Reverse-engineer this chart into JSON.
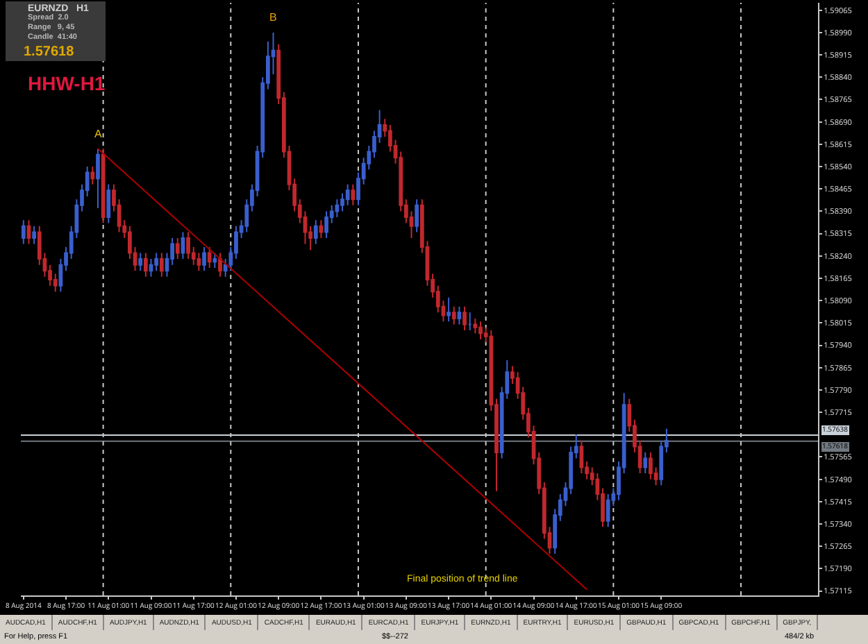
{
  "chart_data": {
    "type": "candlestick",
    "categories": [
      "8 Aug 2014",
      null,
      null,
      null,
      null,
      null,
      null,
      null,
      "8 Aug 17:00",
      null,
      null,
      null,
      null,
      null,
      null,
      null,
      "11 Aug 01:00",
      null,
      null,
      null,
      null,
      null,
      null,
      null,
      "11 Aug 09:00",
      null,
      null,
      null,
      null,
      null,
      null,
      null,
      "11 Aug 17:00",
      null,
      null,
      null,
      null,
      null,
      null,
      null,
      "12 Aug 01:00",
      null,
      null,
      null,
      null,
      null,
      null,
      null,
      "12 Aug 09:00",
      null,
      null,
      null,
      null,
      null,
      null,
      null,
      "12 Aug 17:00",
      null,
      null,
      null,
      null,
      null,
      null,
      null,
      "13 Aug 01:00",
      null,
      null,
      null,
      null,
      null,
      null,
      null,
      "13 Aug 09:00",
      null,
      null,
      null,
      null,
      null,
      null,
      null,
      "13 Aug 17:00",
      null,
      null,
      null,
      null,
      null,
      null,
      null,
      "14 Aug 01:00",
      null,
      null,
      null,
      null,
      null,
      null,
      null,
      "14 Aug 09:00",
      null,
      null,
      null,
      null,
      null,
      null,
      null,
      "14 Aug 17:00",
      null,
      null,
      null,
      null,
      null,
      null,
      null,
      "15 Aug 01:00",
      null,
      null,
      null,
      null,
      null,
      null,
      null,
      "15 Aug 09:00",
      null,
      null,
      null,
      null,
      null,
      null,
      null,
      null,
      null,
      null,
      null,
      null,
      null,
      null,
      null,
      null,
      null,
      null,
      null,
      null,
      null,
      null,
      null,
      null,
      null,
      null,
      null,
      null,
      null
    ],
    "ohlc": [
      [
        1.583,
        1.5836,
        1.5828,
        1.5834
      ],
      [
        1.5834,
        1.5836,
        1.5828,
        1.583
      ],
      [
        1.583,
        1.5834,
        1.5828,
        1.5832
      ],
      [
        1.5832,
        1.5834,
        1.5821,
        1.5823
      ],
      [
        1.5823,
        1.5825,
        1.5817,
        1.5819
      ],
      [
        1.5819,
        1.5821,
        1.5814,
        1.5816
      ],
      [
        1.5816,
        1.5818,
        1.5812,
        1.5814
      ],
      [
        1.5814,
        1.5823,
        1.5812,
        1.5821
      ],
      [
        1.5821,
        1.5827,
        1.5819,
        1.5825
      ],
      [
        1.5825,
        1.5834,
        1.5823,
        1.5832
      ],
      [
        1.5832,
        1.5843,
        1.583,
        1.5841
      ],
      [
        1.5841,
        1.5848,
        1.5839,
        1.5846
      ],
      [
        1.5846,
        1.5854,
        1.5844,
        1.5852
      ],
      [
        1.5852,
        1.5854,
        1.5848,
        1.585
      ],
      [
        1.585,
        1.586,
        1.584,
        1.5858
      ],
      [
        1.5858,
        1.586,
        1.5835,
        1.5837
      ],
      [
        1.5837,
        1.5848,
        1.5835,
        1.5846
      ],
      [
        1.5846,
        1.5848,
        1.5839,
        1.5841
      ],
      [
        1.5841,
        1.5843,
        1.5832,
        1.5834
      ],
      [
        1.5834,
        1.5836,
        1.583,
        1.5832
      ],
      [
        1.5832,
        1.5834,
        1.5823,
        1.5825
      ],
      [
        1.5825,
        1.5827,
        1.5819,
        1.5821
      ],
      [
        1.5821,
        1.5825,
        1.5819,
        1.5823
      ],
      [
        1.5823,
        1.5825,
        1.5817,
        1.5819
      ],
      [
        1.5819,
        1.5823,
        1.5817,
        1.5821
      ],
      [
        1.5821,
        1.5825,
        1.5819,
        1.5823
      ],
      [
        1.5823,
        1.5825,
        1.5817,
        1.5819
      ],
      [
        1.5819,
        1.5825,
        1.5817,
        1.5823
      ],
      [
        1.5823,
        1.583,
        1.5821,
        1.5828
      ],
      [
        1.5828,
        1.583,
        1.5823,
        1.5825
      ],
      [
        1.5825,
        1.5832,
        1.5823,
        1.583
      ],
      [
        1.583,
        1.5832,
        1.5823,
        1.5825
      ],
      [
        1.5825,
        1.5827,
        1.5821,
        1.5823
      ],
      [
        1.5823,
        1.5825,
        1.5819,
        1.5821
      ],
      [
        1.5821,
        1.5827,
        1.5819,
        1.5825
      ],
      [
        1.5825,
        1.5827,
        1.582,
        1.5822
      ],
      [
        1.5822,
        1.5825,
        1.582,
        1.5823
      ],
      [
        1.5823,
        1.5825,
        1.5817,
        1.5819
      ],
      [
        1.5819,
        1.5823,
        1.5817,
        1.5821
      ],
      [
        1.5821,
        1.5827,
        1.5819,
        1.5825
      ],
      [
        1.5825,
        1.5834,
        1.5823,
        1.5832
      ],
      [
        1.5832,
        1.5836,
        1.583,
        1.5834
      ],
      [
        1.5834,
        1.5843,
        1.5832,
        1.5841
      ],
      [
        1.5841,
        1.5848,
        1.5839,
        1.5846
      ],
      [
        1.5846,
        1.5861,
        1.5844,
        1.5859
      ],
      [
        1.5859,
        1.5884,
        1.5857,
        1.5882
      ],
      [
        1.5882,
        1.5896,
        1.588,
        1.5891
      ],
      [
        1.5891,
        1.5899,
        1.5885,
        1.5893
      ],
      [
        1.5893,
        1.5895,
        1.5875,
        1.5877
      ],
      [
        1.5877,
        1.5879,
        1.5857,
        1.5859
      ],
      [
        1.5859,
        1.5861,
        1.5846,
        1.5848
      ],
      [
        1.5848,
        1.585,
        1.5839,
        1.5841
      ],
      [
        1.5841,
        1.5843,
        1.5835,
        1.5837
      ],
      [
        1.5837,
        1.5839,
        1.5828,
        1.5832
      ],
      [
        1.5832,
        1.5834,
        1.5826,
        1.583
      ],
      [
        1.583,
        1.5836,
        1.5828,
        1.5834
      ],
      [
        1.5834,
        1.5836,
        1.583,
        1.5832
      ],
      [
        1.5832,
        1.5839,
        1.583,
        1.5837
      ],
      [
        1.5837,
        1.5841,
        1.5835,
        1.5839
      ],
      [
        1.5839,
        1.5843,
        1.5837,
        1.5841
      ],
      [
        1.5841,
        1.5845,
        1.5839,
        1.5843
      ],
      [
        1.5843,
        1.5848,
        1.5841,
        1.5846
      ],
      [
        1.5846,
        1.5848,
        1.5841,
        1.5843
      ],
      [
        1.5843,
        1.5852,
        1.5841,
        1.585
      ],
      [
        1.585,
        1.5857,
        1.5848,
        1.5855
      ],
      [
        1.5855,
        1.5861,
        1.5853,
        1.5859
      ],
      [
        1.5859,
        1.5866,
        1.5857,
        1.5864
      ],
      [
        1.5864,
        1.5873,
        1.5862,
        1.5868
      ],
      [
        1.5868,
        1.587,
        1.5864,
        1.5866
      ],
      [
        1.5866,
        1.5868,
        1.5859,
        1.5861
      ],
      [
        1.5861,
        1.5863,
        1.5855,
        1.5857
      ],
      [
        1.5857,
        1.5859,
        1.5839,
        1.5841
      ],
      [
        1.5841,
        1.5843,
        1.5835,
        1.5837
      ],
      [
        1.5837,
        1.5839,
        1.583,
        1.5834
      ],
      [
        1.5834,
        1.5843,
        1.5832,
        1.5841
      ],
      [
        1.5841,
        1.5843,
        1.5825,
        1.5827
      ],
      [
        1.5827,
        1.5829,
        1.5814,
        1.5816
      ],
      [
        1.5816,
        1.5818,
        1.581,
        1.5812
      ],
      [
        1.5812,
        1.5814,
        1.5805,
        1.5807
      ],
      [
        1.5807,
        1.5809,
        1.5802,
        1.5804
      ],
      [
        1.5804,
        1.581,
        1.5802,
        1.5805
      ],
      [
        1.5805,
        1.5807,
        1.5801,
        1.5803
      ],
      [
        1.5803,
        1.5807,
        1.5801,
        1.5805
      ],
      [
        1.5805,
        1.5807,
        1.5799,
        1.5801
      ],
      [
        1.5801,
        1.5805,
        1.5799,
        1.5801
      ],
      [
        1.5801,
        1.5803,
        1.5798,
        1.58
      ],
      [
        1.58,
        1.5802,
        1.5796,
        1.5798
      ],
      [
        1.5798,
        1.58,
        1.5795,
        1.5797
      ],
      [
        1.5797,
        1.5799,
        1.5772,
        1.5774
      ],
      [
        1.5774,
        1.5776,
        1.5745,
        1.5758
      ],
      [
        1.5758,
        1.578,
        1.5756,
        1.5778
      ],
      [
        1.5778,
        1.5789,
        1.5776,
        1.5785
      ],
      [
        1.5785,
        1.5787,
        1.5781,
        1.5783
      ],
      [
        1.5783,
        1.5785,
        1.5776,
        1.5778
      ],
      [
        1.5778,
        1.578,
        1.5769,
        1.5771
      ],
      [
        1.5771,
        1.5773,
        1.5763,
        1.5765
      ],
      [
        1.5765,
        1.5767,
        1.5754,
        1.5756
      ],
      [
        1.5756,
        1.5758,
        1.5744,
        1.5746
      ],
      [
        1.5746,
        1.5748,
        1.5729,
        1.5731
      ],
      [
        1.5731,
        1.5733,
        1.5724,
        1.5726
      ],
      [
        1.5726,
        1.5739,
        1.5724,
        1.5737
      ],
      [
        1.5737,
        1.5744,
        1.5735,
        1.5742
      ],
      [
        1.5742,
        1.5748,
        1.574,
        1.5746
      ],
      [
        1.5746,
        1.576,
        1.5744,
        1.5758
      ],
      [
        1.5758,
        1.5764,
        1.5756,
        1.576
      ],
      [
        1.576,
        1.5762,
        1.5751,
        1.5753
      ],
      [
        1.5753,
        1.5755,
        1.5749,
        1.5751
      ],
      [
        1.5751,
        1.5753,
        1.5747,
        1.5749
      ],
      [
        1.5749,
        1.5751,
        1.5742,
        1.5744
      ],
      [
        1.5744,
        1.5746,
        1.5733,
        1.5735
      ],
      [
        1.5735,
        1.5744,
        1.5733,
        1.5742
      ],
      [
        1.5742,
        1.5746,
        1.574,
        1.5744
      ],
      [
        1.5744,
        1.5755,
        1.5742,
        1.5753
      ],
      [
        1.5753,
        1.5778,
        1.5751,
        1.5774
      ],
      [
        1.5774,
        1.5776,
        1.5765,
        1.5767
      ],
      [
        1.5767,
        1.5769,
        1.5758,
        1.576
      ],
      [
        1.576,
        1.5762,
        1.5751,
        1.5753
      ],
      [
        1.5753,
        1.5758,
        1.5751,
        1.5756
      ],
      [
        1.5756,
        1.5758,
        1.5749,
        1.5751
      ],
      [
        1.5751,
        1.5753,
        1.5747,
        1.5749
      ],
      [
        1.5749,
        1.5762,
        1.5747,
        1.576
      ],
      [
        1.576,
        1.5766,
        1.5758,
        1.5762
      ],
      null,
      null,
      null,
      null,
      null,
      null,
      null,
      null,
      null,
      null,
      null,
      null,
      null,
      null,
      null,
      null,
      null,
      null,
      null,
      null,
      null,
      null,
      null,
      null,
      null,
      null,
      null,
      null
    ],
    "colors": [
      "#3a5fcd",
      "#c0282d",
      "#3a5fcd",
      "#c0282d",
      "#c0282d",
      "#c0282d",
      "#c0282d",
      "#3a5fcd",
      "#3a5fcd",
      "#3a5fcd",
      "#3a5fcd",
      "#3a5fcd",
      "#3a5fcd",
      "#c0282d",
      "#3a5fcd",
      "#c0282d",
      "#3a5fcd",
      "#c0282d",
      "#c0282d",
      "#c0282d",
      "#c0282d",
      "#c0282d",
      "#3a5fcd",
      "#c0282d",
      "#3a5fcd",
      "#3a5fcd",
      "#c0282d",
      "#3a5fcd",
      "#3a5fcd",
      "#c0282d",
      "#3a5fcd",
      "#c0282d",
      "#c0282d",
      "#c0282d",
      "#3a5fcd",
      "#c0282d",
      "#3a5fcd",
      "#c0282d",
      "#3a5fcd",
      "#3a5fcd",
      "#3a5fcd",
      "#3a5fcd",
      "#3a5fcd",
      "#3a5fcd",
      "#3a5fcd",
      "#3a5fcd",
      "#3a5fcd",
      "#3a5fcd",
      "#c0282d",
      "#c0282d",
      "#c0282d",
      "#c0282d",
      "#c0282d",
      "#c0282d",
      "#c0282d",
      "#3a5fcd",
      "#c0282d",
      "#3a5fcd",
      "#3a5fcd",
      "#3a5fcd",
      "#3a5fcd",
      "#3a5fcd",
      "#c0282d",
      "#3a5fcd",
      "#3a5fcd",
      "#3a5fcd",
      "#3a5fcd",
      "#3a5fcd",
      "#c0282d",
      "#c0282d",
      "#c0282d",
      "#c0282d",
      "#c0282d",
      "#c0282d",
      "#3a5fcd",
      "#c0282d",
      "#c0282d",
      "#c0282d",
      "#c0282d",
      "#c0282d",
      "#3a5fcd",
      "#c0282d",
      "#3a5fcd",
      "#c0282d",
      "#3a5fcd",
      "#c0282d",
      "#c0282d",
      "#c0282d",
      "#c0282d",
      "#c0282d",
      "#3a5fcd",
      "#3a5fcd",
      "#c0282d",
      "#c0282d",
      "#c0282d",
      "#c0282d",
      "#c0282d",
      "#c0282d",
      "#c0282d",
      "#c0282d",
      "#3a5fcd",
      "#3a5fcd",
      "#3a5fcd",
      "#3a5fcd",
      "#3a5fcd",
      "#c0282d",
      "#c0282d",
      "#c0282d",
      "#c0282d",
      "#c0282d",
      "#3a5fcd",
      "#3a5fcd",
      "#3a5fcd",
      "#3a5fcd",
      "#c0282d",
      "#c0282d",
      "#c0282d",
      "#3a5fcd",
      "#c0282d",
      "#c0282d",
      "#3a5fcd",
      "#3a5fcd",
      null,
      null,
      null,
      null,
      null,
      null,
      null,
      null,
      null,
      null,
      null,
      null,
      null,
      null,
      null,
      null,
      null,
      null,
      null,
      null,
      null,
      null,
      null,
      null,
      null,
      null,
      null,
      null
    ],
    "series": [
      {
        "type": "line",
        "color": "#b00000",
        "values": [
          null,
          null,
          null,
          null,
          null,
          null,
          null,
          null,
          null,
          null,
          null,
          null,
          null,
          null,
          1.586,
          null,
          null,
          null,
          null,
          null,
          null,
          null,
          null,
          null,
          null,
          null,
          null,
          null,
          null,
          null,
          null,
          null,
          null,
          null,
          null,
          null,
          null,
          null,
          null,
          null,
          null,
          null,
          null,
          null,
          null,
          null,
          null,
          null,
          null,
          null,
          null,
          null,
          null,
          null,
          null,
          null,
          null,
          null,
          null,
          null,
          null,
          null,
          null,
          null,
          null,
          null,
          null,
          null,
          null,
          null,
          null,
          null,
          null,
          null,
          null,
          null,
          null,
          null,
          null,
          null,
          null,
          null,
          null,
          null,
          null,
          null,
          null,
          null,
          null,
          null,
          null,
          null,
          null,
          null,
          null,
          null,
          null,
          null,
          null,
          null,
          null,
          null,
          null,
          null,
          null,
          null,
          1.5712,
          null,
          null,
          null,
          null,
          null,
          null,
          null,
          null,
          null,
          null,
          null,
          null,
          null,
          null,
          null,
          null,
          null,
          null,
          null,
          null,
          null,
          null,
          null,
          null,
          null,
          null,
          null,
          null,
          null,
          null,
          null,
          null,
          null,
          null,
          null,
          null,
          null,
          null,
          null,
          null,
          null,
          null,
          null
        ]
      }
    ],
    "ylim": [
      1.571,
      1.5909
    ],
    "yticks": [
      1.57115,
      {
        "value": 1.5719,
        "label": "1.57190"
      },
      1.57265,
      {
        "value": 1.5734,
        "label": "1.57340"
      },
      1.57415,
      {
        "value": 1.5749,
        "label": "1.57490"
      },
      1.57565,
      1.57715,
      {
        "value": 1.5779,
        "label": "1.57790"
      },
      1.57865,
      {
        "value": 1.5794,
        "label": "1.57940"
      },
      1.58015,
      {
        "value": 1.5809,
        "label": "1.58090"
      },
      1.58165,
      {
        "value": 1.5824,
        "label": "1.58240"
      },
      1.58315,
      {
        "value": 1.5839,
        "label": "1.58390"
      },
      1.58465,
      {
        "value": 1.5854,
        "label": "1.58540"
      },
      1.58615,
      {
        "value": 1.5869,
        "label": "1.58690"
      },
      1.58765,
      {
        "value": 1.5884,
        "label": "1.58840"
      },
      1.58915,
      {
        "value": 1.5899,
        "label": "1.58990"
      },
      1.59065
    ],
    "ref_lines": [
      {
        "axis": "y",
        "value": 1.57638,
        "label": "1.57638",
        "color": "#c8d0d8",
        "line_style": "solid"
      },
      {
        "axis": "y",
        "value": 1.57618,
        "label": "1.57618",
        "color": "#707880",
        "line_style": "solid"
      }
    ],
    "grid": false,
    "annotations": [
      "EURNZD   H1",
      "Spread  2.0",
      "Range   9, 45",
      "Candle  41:40",
      "1.57618",
      "HHW-H1",
      "A",
      "B",
      "Final position of trend line",
      "AUDCAD,H1",
      "AUDCHF,H1",
      "AUDJPY,H1",
      "AUDNZD,H1",
      "AUDUSD,H1",
      "CADCHF,H1",
      "EURAUD,H1",
      "EURCAD,H1",
      "EURJPY,H1",
      "EURNZD,H1",
      "EURTRY,H1",
      "EURUSD,H1",
      "GBPAUD,H1",
      "GBPCAD,H1",
      "GBPCHF,H1",
      "GBPJPY,",
      "For Help, press F1",
      "$$--272",
      "484/2 kb"
    ]
  }
}
